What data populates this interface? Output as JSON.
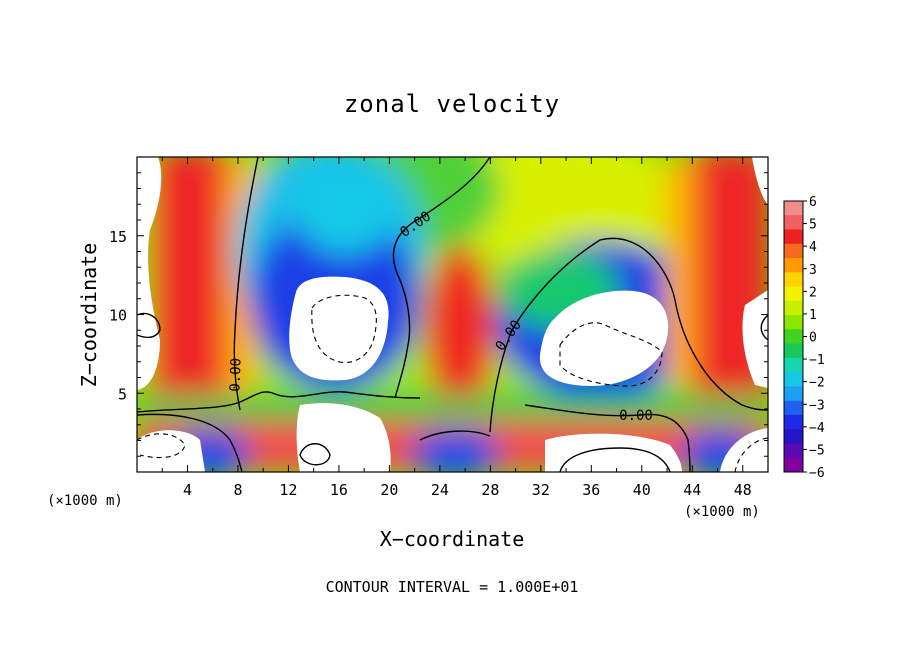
{
  "chart_data": {
    "type": "heatmap",
    "title": "zonal velocity",
    "xlabel": "X−coordinate",
    "ylabel": "Z−coordinate",
    "x_unit": "(×1000 m)",
    "z_unit": "(×1000 m)",
    "xlim": [
      0,
      50
    ],
    "ylim": [
      0,
      20
    ],
    "x_ticks": [
      4,
      8,
      12,
      16,
      20,
      24,
      28,
      32,
      36,
      40,
      44,
      48
    ],
    "y_ticks": [
      5,
      10,
      15
    ],
    "x_tick_labels": [
      "4",
      "8",
      "12",
      "16",
      "20",
      "24",
      "28",
      "32",
      "36",
      "40",
      "44",
      "48"
    ],
    "y_tick_labels": [
      "5",
      "10",
      "15"
    ],
    "colorbar": {
      "min": -6,
      "max": 6,
      "ticks": [
        "6",
        "5",
        "4",
        "3",
        "2",
        "1",
        "0",
        "−1",
        "−2",
        "−3",
        "−4",
        "−5",
        "−6"
      ],
      "colors": [
        "#f08c8c",
        "#f06060",
        "#ee2020",
        "#f56a1e",
        "#ff9a00",
        "#ffd200",
        "#f2f200",
        "#c6f000",
        "#8ce600",
        "#3fd21e",
        "#18c85a",
        "#16d6b0",
        "#14c8e8",
        "#1ea0f0",
        "#1e60f0",
        "#1e28e6",
        "#2814c8",
        "#5a0ab4",
        "#8200a0"
      ]
    },
    "contour_label": "0.00",
    "contour_interval_text": "CONTOUR INTERVAL = 1.000E+01",
    "saturated_regions_note": "white = values beyond color range",
    "features": [
      {
        "kind": "positive-jet",
        "x": 5.5,
        "z_range": [
          5,
          20
        ],
        "peak": 6
      },
      {
        "kind": "negative-core",
        "x": 16.5,
        "z": 9.5,
        "peak": -6
      },
      {
        "kind": "positive-jet",
        "x": 26,
        "z_range": [
          4,
          14
        ],
        "peak": 5
      },
      {
        "kind": "negative-core",
        "x": 38.5,
        "z": 8.5,
        "peak": -6
      },
      {
        "kind": "positive-jet",
        "x": 45.5,
        "z_range": [
          5,
          20
        ],
        "peak": 6
      },
      {
        "kind": "positive-layer",
        "x_range": [
          0,
          50
        ],
        "z": 2.5,
        "peak": 6
      }
    ]
  }
}
